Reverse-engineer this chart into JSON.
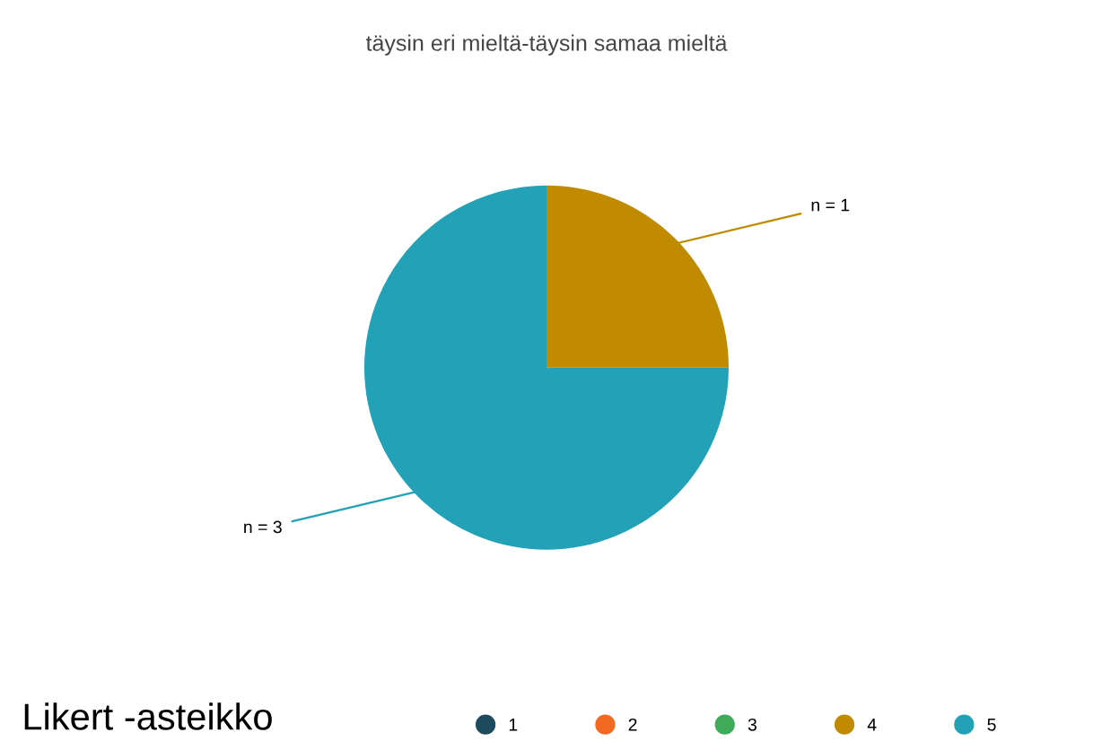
{
  "chart_data": {
    "type": "pie",
    "title": "täysin eri mieltä-täysin samaa mieltä",
    "legend_title": "Likert -asteikko",
    "categories": [
      "1",
      "2",
      "3",
      "4",
      "5"
    ],
    "values": [
      0,
      0,
      0,
      1,
      3
    ],
    "value_labels": [
      null,
      null,
      null,
      "n = 1",
      "n = 3"
    ],
    "colors": [
      "#1d4a5c",
      "#f26a21",
      "#3faa5a",
      "#c18b00",
      "#22a1b7"
    ],
    "legend": "bottom"
  }
}
